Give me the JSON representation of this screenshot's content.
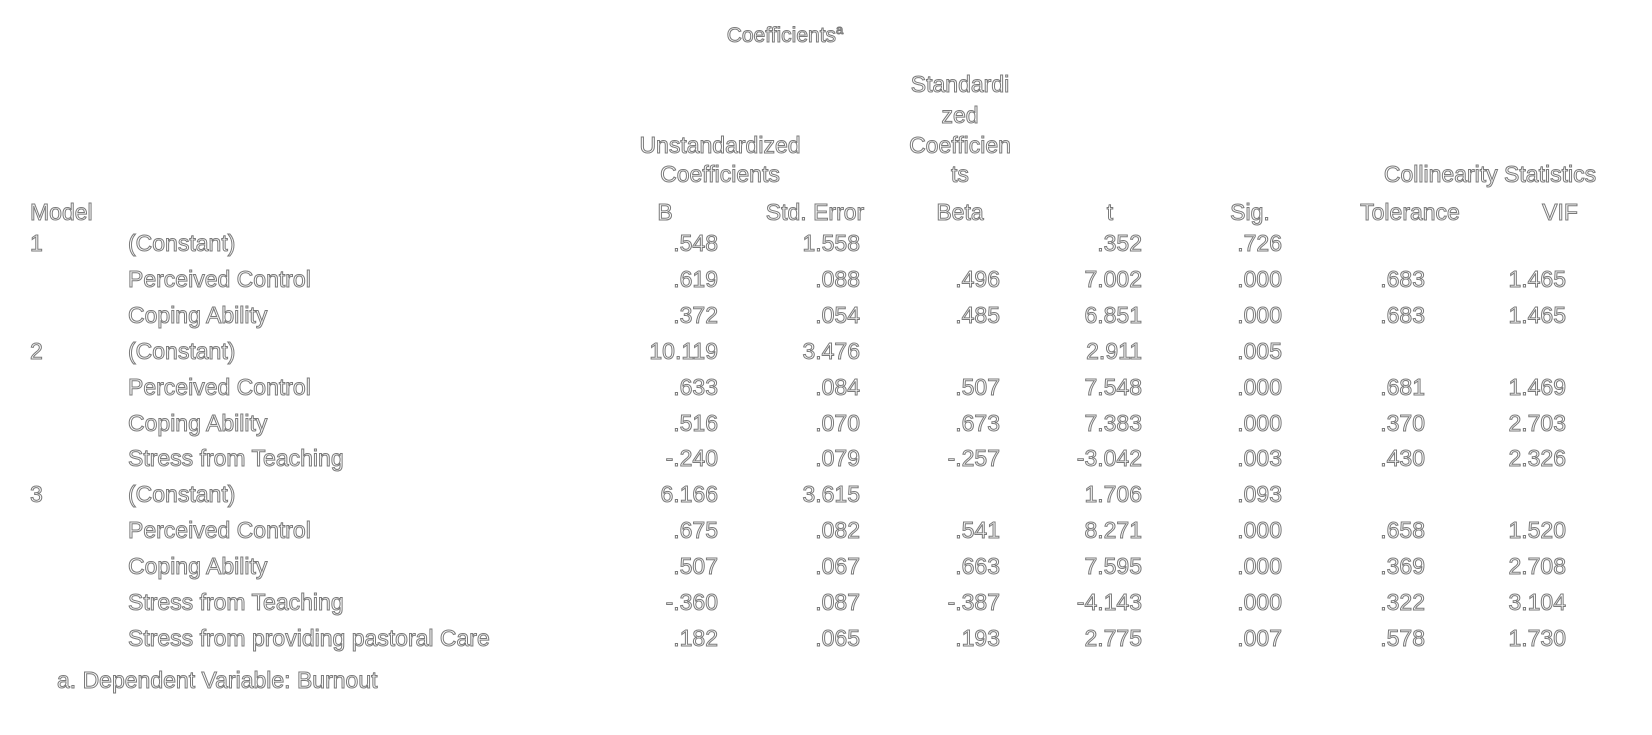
{
  "title": "Coefficients",
  "title_superscript": "a",
  "headers": {
    "model": "Model",
    "unstd_group_line1": "Unstandardized",
    "unstd_group_line2": "Coefficients",
    "std_group_line1": "Standardi",
    "std_group_line2": "zed",
    "std_group_line3": "Coefficien",
    "std_group_line4": "ts",
    "collin_group": "Collinearity Statistics",
    "b": "B",
    "std_error": "Std. Error",
    "beta": "Beta",
    "t": "t",
    "sig": "Sig.",
    "tolerance": "Tolerance",
    "vif": "VIF"
  },
  "rows": [
    {
      "model": "1",
      "predictor": "(Constant)",
      "b": ".548",
      "se": "1.558",
      "beta": "",
      "t": ".352",
      "sig": ".726",
      "tol": "",
      "vif": ""
    },
    {
      "model": "",
      "predictor": "Perceived Control",
      "b": ".619",
      "se": ".088",
      "beta": ".496",
      "t": "7.002",
      "sig": ".000",
      "tol": ".683",
      "vif": "1.465"
    },
    {
      "model": "",
      "predictor": "Coping Ability",
      "b": ".372",
      "se": ".054",
      "beta": ".485",
      "t": "6.851",
      "sig": ".000",
      "tol": ".683",
      "vif": "1.465"
    },
    {
      "model": "2",
      "predictor": "(Constant)",
      "b": "10.119",
      "se": "3.476",
      "beta": "",
      "t": "2.911",
      "sig": ".005",
      "tol": "",
      "vif": ""
    },
    {
      "model": "",
      "predictor": "Perceived Control",
      "b": ".633",
      "se": ".084",
      "beta": ".507",
      "t": "7.548",
      "sig": ".000",
      "tol": ".681",
      "vif": "1.469"
    },
    {
      "model": "",
      "predictor": "Coping Ability",
      "b": ".516",
      "se": ".070",
      "beta": ".673",
      "t": "7.383",
      "sig": ".000",
      "tol": ".370",
      "vif": "2.703"
    },
    {
      "model": "",
      "predictor": "Stress from Teaching",
      "b": "-.240",
      "se": ".079",
      "beta": "-.257",
      "t": "-3.042",
      "sig": ".003",
      "tol": ".430",
      "vif": "2.326"
    },
    {
      "model": "3",
      "predictor": "(Constant)",
      "b": "6.166",
      "se": "3.615",
      "beta": "",
      "t": "1.706",
      "sig": ".093",
      "tol": "",
      "vif": ""
    },
    {
      "model": "",
      "predictor": "Perceived Control",
      "b": ".675",
      "se": ".082",
      "beta": ".541",
      "t": "8.271",
      "sig": ".000",
      "tol": ".658",
      "vif": "1.520"
    },
    {
      "model": "",
      "predictor": "Coping Ability",
      "b": ".507",
      "se": ".067",
      "beta": ".663",
      "t": "7.595",
      "sig": ".000",
      "tol": ".369",
      "vif": "2.708"
    },
    {
      "model": "",
      "predictor": "Stress from Teaching",
      "b": "-.360",
      "se": ".087",
      "beta": "-.387",
      "t": "-4.143",
      "sig": ".000",
      "tol": ".322",
      "vif": "3.104"
    },
    {
      "model": "",
      "predictor": "Stress from providing pastoral Care",
      "b": ".182",
      "se": ".065",
      "beta": ".193",
      "t": "2.775",
      "sig": ".007",
      "tol": ".578",
      "vif": "1.730"
    }
  ],
  "footnote": "a. Dependent Variable: Burnout"
}
